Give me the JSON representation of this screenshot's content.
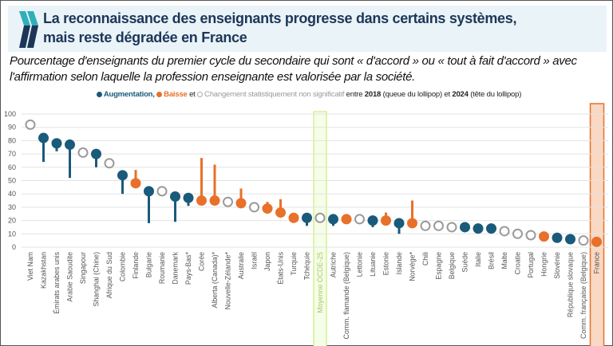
{
  "header": {
    "title_line1": "La reconnaissance des enseignants progresse dans certains systèmes,",
    "title_line2": "mais reste dégradée en France",
    "subtitle": "Pourcentage d'enseignants du premier cycle du secondaire qui sont « d'accord » ou « tout à fait d'accord » avec l'affirmation selon laquelle la profession enseignante est valorisée par la société."
  },
  "legend": {
    "increase": "Augmentation,",
    "decrease": "Baisse",
    "and": "et",
    "nonsig": "Changement statistiquement non significatif",
    "between": "entre",
    "year1": "2018",
    "tail": "(queue du lollipop)",
    "et2": "et",
    "year2": "2024",
    "head": "(tête du lollipop)"
  },
  "colors": {
    "increase": "#1a5a7a",
    "decrease": "#e8702a",
    "nonsig": "#9a9a9a",
    "oecd_highlight": "#c8f07a",
    "france_highlight": "#e8702a"
  },
  "chart_data": {
    "type": "lollipop",
    "ylim": [
      0,
      100
    ],
    "yticks": [
      0,
      10,
      20,
      30,
      40,
      50,
      60,
      70,
      80,
      90,
      100
    ],
    "grid": true,
    "legend_position": "top",
    "highlighted": [
      "Moyenne OCDE-25",
      "France"
    ],
    "points": [
      {
        "name": "Viet Nam",
        "y2018": null,
        "y2024": 92,
        "change": "ns"
      },
      {
        "name": "Kazakhstan",
        "y2018": 64,
        "y2024": 82,
        "change": "increase"
      },
      {
        "name": "Émirats arabes unis",
        "y2018": 72,
        "y2024": 78,
        "change": "increase"
      },
      {
        "name": "Arabie Saoudite",
        "y2018": 52,
        "y2024": 77,
        "change": "increase"
      },
      {
        "name": "Singapour",
        "y2018": null,
        "y2024": 71,
        "change": "ns"
      },
      {
        "name": "Shanghai (Chine)",
        "y2018": 60,
        "y2024": 70,
        "change": "increase"
      },
      {
        "name": "Afrique du Sud",
        "y2018": null,
        "y2024": 63,
        "change": "ns"
      },
      {
        "name": "Colombie",
        "y2018": 40,
        "y2024": 54,
        "change": "increase"
      },
      {
        "name": "Finlande",
        "y2018": 58,
        "y2024": 48,
        "change": "decrease"
      },
      {
        "name": "Bulgarie",
        "y2018": 18,
        "y2024": 42,
        "change": "increase"
      },
      {
        "name": "Roumanie",
        "y2018": null,
        "y2024": 42,
        "change": "ns"
      },
      {
        "name": "Danemark",
        "y2018": 19,
        "y2024": 38,
        "change": "increase"
      },
      {
        "name": "Pays-Bas*",
        "y2018": 31,
        "y2024": 37,
        "change": "increase"
      },
      {
        "name": "Corée",
        "y2018": 67,
        "y2024": 35,
        "change": "decrease"
      },
      {
        "name": "Alberta (Canada)*",
        "y2018": 62,
        "y2024": 35,
        "change": "decrease"
      },
      {
        "name": "Nouvelle-Zélande*",
        "y2018": null,
        "y2024": 34,
        "change": "ns"
      },
      {
        "name": "Australie",
        "y2018": 44,
        "y2024": 33,
        "change": "decrease"
      },
      {
        "name": "Israël",
        "y2018": null,
        "y2024": 30,
        "change": "ns"
      },
      {
        "name": "Japon",
        "y2018": 34,
        "y2024": 29,
        "change": "decrease"
      },
      {
        "name": "États-Unis",
        "y2018": 36,
        "y2024": 26,
        "change": "decrease"
      },
      {
        "name": "Turquie",
        "y2018": 23,
        "y2024": 22,
        "change": "decrease"
      },
      {
        "name": "Tchéquie",
        "y2018": 16,
        "y2024": 22,
        "change": "increase"
      },
      {
        "name": "Moyenne OCDE-25",
        "y2018": null,
        "y2024": 22,
        "change": "ns"
      },
      {
        "name": "Autriche",
        "y2018": 16,
        "y2024": 21,
        "change": "increase"
      },
      {
        "name": "Comm. flamande (Belgique)",
        "y2018": 24,
        "y2024": 21,
        "change": "decrease"
      },
      {
        "name": "Lettonie",
        "y2018": null,
        "y2024": 21,
        "change": "ns"
      },
      {
        "name": "Lituanie",
        "y2018": 15,
        "y2024": 20,
        "change": "increase"
      },
      {
        "name": "Estonie",
        "y2018": 26,
        "y2024": 20,
        "change": "decrease"
      },
      {
        "name": "Islande",
        "y2018": 10,
        "y2024": 18,
        "change": "increase"
      },
      {
        "name": "Norvège*",
        "y2018": 35,
        "y2024": 18,
        "change": "decrease"
      },
      {
        "name": "Chili",
        "y2018": null,
        "y2024": 16,
        "change": "ns"
      },
      {
        "name": "Espagne",
        "y2018": null,
        "y2024": 16,
        "change": "ns"
      },
      {
        "name": "Belgique",
        "y2018": null,
        "y2024": 15,
        "change": "ns"
      },
      {
        "name": "Suède",
        "y2018": 12,
        "y2024": 15,
        "change": "increase"
      },
      {
        "name": "Italie",
        "y2018": null,
        "y2024": 14,
        "change": "increase"
      },
      {
        "name": "Brésil",
        "y2018": null,
        "y2024": 14,
        "change": "increase"
      },
      {
        "name": "Malte",
        "y2018": null,
        "y2024": 12,
        "change": "ns"
      },
      {
        "name": "Croatie",
        "y2018": null,
        "y2024": 10,
        "change": "ns"
      },
      {
        "name": "Portugal",
        "y2018": null,
        "y2024": 9,
        "change": "ns"
      },
      {
        "name": "Hongrie",
        "y2018": null,
        "y2024": 8,
        "change": "decrease"
      },
      {
        "name": "Slovénie",
        "y2018": null,
        "y2024": 7,
        "change": "increase"
      },
      {
        "name": "République slovaque",
        "y2018": null,
        "y2024": 6,
        "change": "increase"
      },
      {
        "name": "Comm. française (Belgique)",
        "y2018": null,
        "y2024": 5,
        "change": "ns"
      },
      {
        "name": "France",
        "y2018": null,
        "y2024": 4,
        "change": "decrease"
      }
    ]
  }
}
